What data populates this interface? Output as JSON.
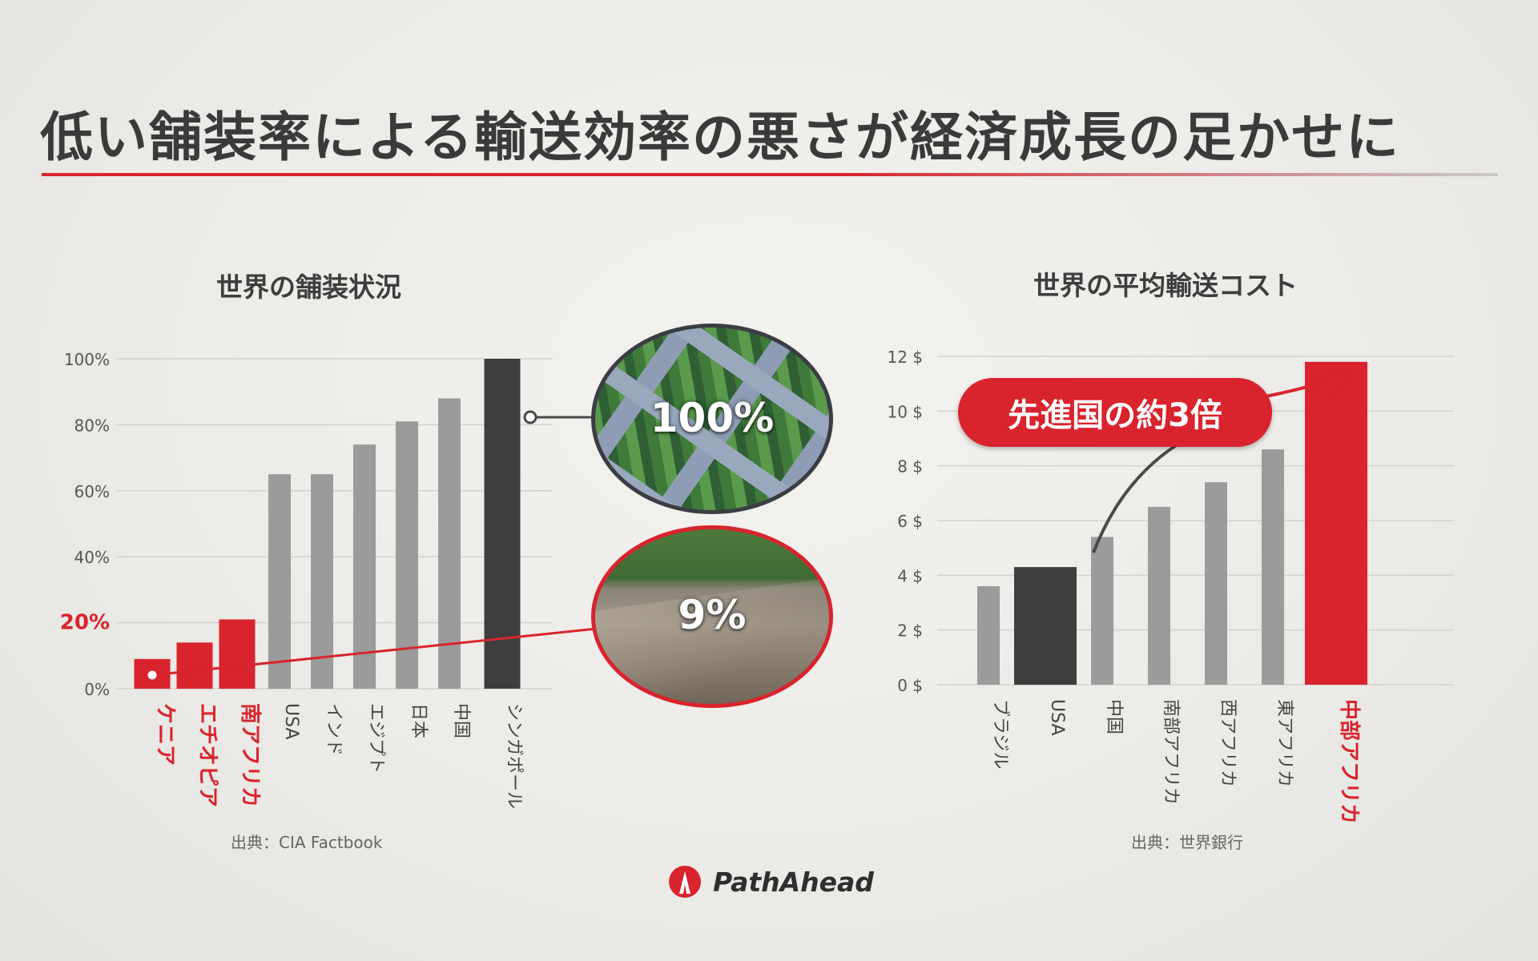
{
  "slide": {
    "title": "低い舗装率による輸送効率の悪さが経済成長の足かせに",
    "brand_name": "PathAhead",
    "brand_color": "#d9232d"
  },
  "photos": {
    "highway_label": "100%",
    "road_label": "9%"
  },
  "callout": {
    "text": "先進国の約3倍"
  },
  "chart_data": [
    {
      "type": "bar",
      "title": "世界の舗装状況",
      "source": "出典：CIA Factbook",
      "categories": [
        "ケニア",
        "エチオピア",
        "南アフリカ",
        "USA",
        "インド",
        "エジプト",
        "日本",
        "中国",
        "シンガポール"
      ],
      "values": [
        9,
        14,
        21,
        65,
        65,
        74,
        81,
        88,
        100
      ],
      "colors": [
        "#d9232d",
        "#d9232d",
        "#d9232d",
        "#9b9b9b",
        "#9b9b9b",
        "#9b9b9b",
        "#9b9b9b",
        "#9b9b9b",
        "#3e3e3e"
      ],
      "highlight_categories": [
        "ケニア",
        "エチオピア",
        "南アフリカ"
      ],
      "ylim": [
        0,
        100
      ],
      "y_ticks": [
        "0%",
        "20%",
        "40%",
        "60%",
        "80%",
        "100%"
      ],
      "highlight_y_tick": "20%",
      "grid": true
    },
    {
      "type": "bar",
      "title": "世界の平均輸送コスト",
      "source": "出典：世界銀行",
      "categories": [
        "ブラジル",
        "USA",
        "中国",
        "南部アフリカ",
        "西アフリカ",
        "東アフリカ",
        "中部アフリカ"
      ],
      "values": [
        3.6,
        4.3,
        5.4,
        6.5,
        7.4,
        8.6,
        11.8
      ],
      "colors": [
        "#9b9b9b",
        "#3e3e3e",
        "#9b9b9b",
        "#9b9b9b",
        "#9b9b9b",
        "#9b9b9b",
        "#d9232d"
      ],
      "highlight_categories": [
        "中部アフリカ"
      ],
      "ylim": [
        0,
        12
      ],
      "y_ticks": [
        "0 $",
        "2 $",
        "4 $",
        "6 $",
        "8 $",
        "10 $",
        "12 $"
      ],
      "grid": true
    }
  ]
}
